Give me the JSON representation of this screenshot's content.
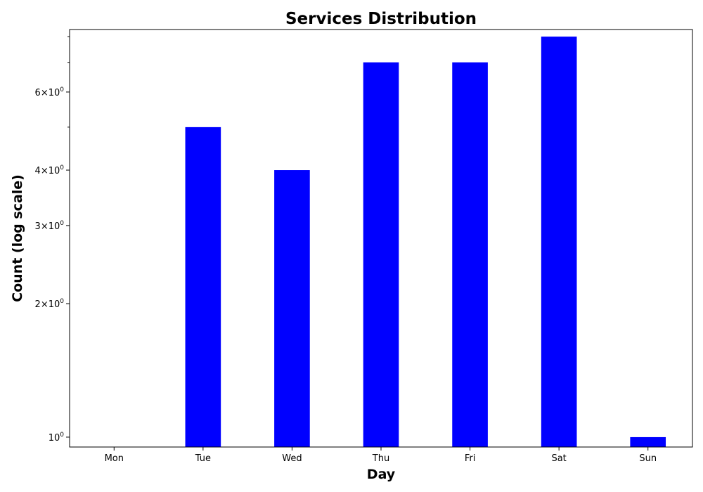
{
  "chart_data": {
    "type": "bar",
    "title": "Services Distribution",
    "xlabel": "Day",
    "ylabel": "Count (log scale)",
    "yscale": "log",
    "categories": [
      "Mon",
      "Tue",
      "Wed",
      "Thu",
      "Fri",
      "Sat",
      "Sun"
    ],
    "values": [
      0,
      5,
      4,
      7,
      7,
      8,
      1
    ],
    "ylim": [
      0.95,
      8.3
    ],
    "ytick_labels": [
      {
        "value": 1,
        "mantissa": "",
        "exponent": "0"
      },
      {
        "value": 2,
        "mantissa": "2",
        "exponent": "0"
      },
      {
        "value": 3,
        "mantissa": "3",
        "exponent": "0"
      },
      {
        "value": 4,
        "mantissa": "4",
        "exponent": "0"
      },
      {
        "value": 6,
        "mantissa": "6",
        "exponent": "0"
      }
    ],
    "minor_ticks_unlabeled": [
      5,
      7,
      8
    ],
    "bar_color": "#0000ff",
    "grid": false,
    "legend": "none"
  }
}
